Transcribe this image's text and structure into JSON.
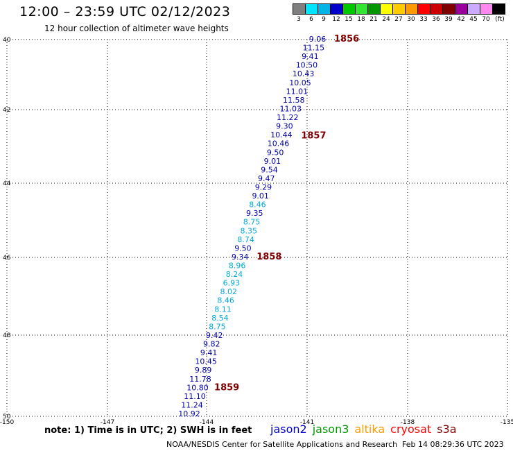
{
  "title": "12:00 – 23:59 UTC 02/12/2023",
  "subtitle": "12 hour collection of altimeter wave heights",
  "legend": {
    "colors": [
      "#7f7f7f",
      "#00e5ff",
      "#00b4e6",
      "#0000cc",
      "#00c800",
      "#32e632",
      "#009600",
      "#ffff00",
      "#ffcc00",
      "#ff9900",
      "#ff0000",
      "#cc0000",
      "#800000",
      "#990099",
      "#ccaaff",
      "#ff88ee",
      "#000000"
    ],
    "labels": [
      "3",
      "6",
      "9",
      "12",
      "15",
      "18",
      "21",
      "24",
      "27",
      "30",
      "33",
      "36",
      "39",
      "42",
      "45",
      "70",
      "(ft)"
    ]
  },
  "axes": {
    "lat_labels": [
      "40",
      "42",
      "44",
      "46",
      "48",
      "50"
    ],
    "lon_labels": [
      "-150",
      "-147",
      "-144",
      "-141",
      "-138",
      "-135"
    ]
  },
  "wave_colors": {
    "dark_blue": "#0000aa",
    "light_blue": "#00aadd",
    "time_label": "#800000"
  },
  "points": [
    {
      "v": "9.06",
      "c": "dark_blue"
    },
    {
      "v": "11.15",
      "c": "dark_blue"
    },
    {
      "v": "9.41",
      "c": "dark_blue"
    },
    {
      "v": "10.50",
      "c": "dark_blue"
    },
    {
      "v": "10.43",
      "c": "dark_blue"
    },
    {
      "v": "10.05",
      "c": "dark_blue"
    },
    {
      "v": "11.01",
      "c": "dark_blue"
    },
    {
      "v": "11.58",
      "c": "dark_blue"
    },
    {
      "v": "11.03",
      "c": "dark_blue"
    },
    {
      "v": "11.22",
      "c": "dark_blue"
    },
    {
      "v": "9.30",
      "c": "dark_blue"
    },
    {
      "v": "10.44",
      "c": "dark_blue"
    },
    {
      "v": "10.46",
      "c": "dark_blue"
    },
    {
      "v": "9.50",
      "c": "dark_blue"
    },
    {
      "v": "9.01",
      "c": "dark_blue"
    },
    {
      "v": "9.54",
      "c": "dark_blue"
    },
    {
      "v": "9.47",
      "c": "dark_blue"
    },
    {
      "v": "9.29",
      "c": "dark_blue"
    },
    {
      "v": "9.01",
      "c": "dark_blue"
    },
    {
      "v": "8.46",
      "c": "light_blue"
    },
    {
      "v": "9.35",
      "c": "dark_blue"
    },
    {
      "v": "8.75",
      "c": "light_blue"
    },
    {
      "v": "8.35",
      "c": "light_blue"
    },
    {
      "v": "8.74",
      "c": "light_blue"
    },
    {
      "v": "9.50",
      "c": "dark_blue"
    },
    {
      "v": "9.34",
      "c": "dark_blue"
    },
    {
      "v": "8.96",
      "c": "light_blue"
    },
    {
      "v": "8.24",
      "c": "light_blue"
    },
    {
      "v": "6.93",
      "c": "light_blue"
    },
    {
      "v": "8.02",
      "c": "light_blue"
    },
    {
      "v": "8.46",
      "c": "light_blue"
    },
    {
      "v": "8.11",
      "c": "light_blue"
    },
    {
      "v": "8.54",
      "c": "light_blue"
    },
    {
      "v": "8.75",
      "c": "light_blue"
    },
    {
      "v": "9.42",
      "c": "dark_blue"
    },
    {
      "v": "9.82",
      "c": "dark_blue"
    },
    {
      "v": "9.41",
      "c": "dark_blue"
    },
    {
      "v": "10.45",
      "c": "dark_blue"
    },
    {
      "v": "9.89",
      "c": "dark_blue"
    },
    {
      "v": "11.78",
      "c": "dark_blue"
    },
    {
      "v": "10.80",
      "c": "dark_blue"
    },
    {
      "v": "11.10",
      "c": "dark_blue"
    },
    {
      "v": "11.24",
      "c": "dark_blue"
    },
    {
      "v": "10.92",
      "c": "dark_blue"
    }
  ],
  "time_labels": [
    {
      "text": "1856",
      "index": 0
    },
    {
      "text": "1857",
      "index": 10
    },
    {
      "text": "1858",
      "index": 25
    },
    {
      "text": "1859",
      "index": 40
    }
  ],
  "note": "note:  1) Time is in UTC;  2) SWH is in feet",
  "satellites": [
    {
      "name": "jason2",
      "color": "#0000cc"
    },
    {
      "name": "jason3",
      "color": "#009900"
    },
    {
      "name": "altika",
      "color": "#ff9900"
    },
    {
      "name": "cryosat",
      "color": "#ff0000"
    },
    {
      "name": "s3a",
      "color": "#800000"
    }
  ],
  "footer": {
    "credit": "NOAA/NESDIS Center for Satellite Applications and Research",
    "timestamp": "Feb 14 08:29:36 UTC 2023"
  }
}
